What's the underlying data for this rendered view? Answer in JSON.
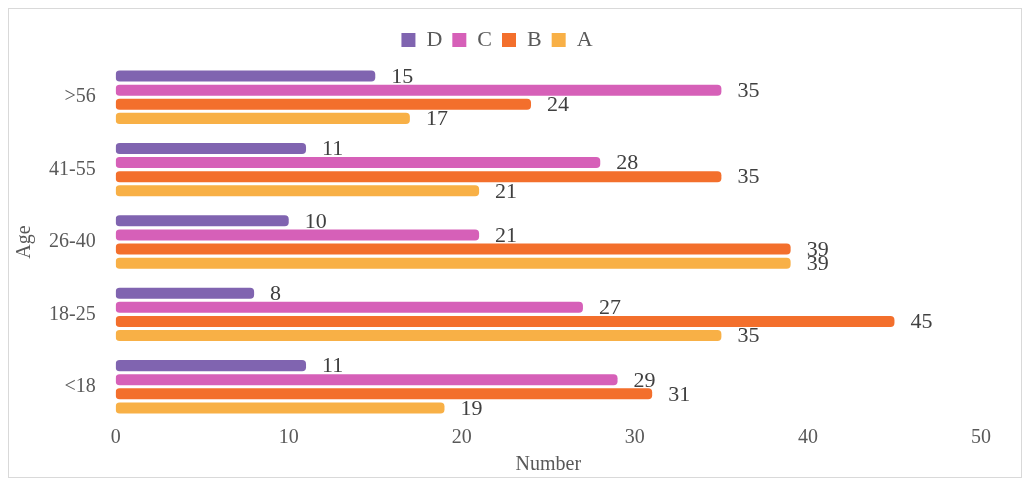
{
  "chart_data": {
    "type": "bar",
    "orientation": "horizontal",
    "xlabel": "Number",
    "ylabel": "Age",
    "categories": [
      ">56",
      "41-55",
      "26-40",
      "18-25",
      "<18"
    ],
    "series": [
      {
        "name": "D",
        "color": "#8064b0",
        "values": [
          15,
          11,
          10,
          8,
          11
        ]
      },
      {
        "name": "C",
        "color": "#d660b8",
        "values": [
          35,
          28,
          21,
          27,
          29
        ]
      },
      {
        "name": "B",
        "color": "#f36f2c",
        "values": [
          24,
          35,
          39,
          45,
          31
        ]
      },
      {
        "name": "A",
        "color": "#f8b046",
        "values": [
          17,
          21,
          39,
          35,
          19
        ]
      }
    ],
    "xlim": [
      0,
      50
    ],
    "xticks": [
      0,
      10,
      20,
      30,
      40,
      50
    ],
    "grid": false,
    "legend": "top",
    "data_labels": true
  }
}
